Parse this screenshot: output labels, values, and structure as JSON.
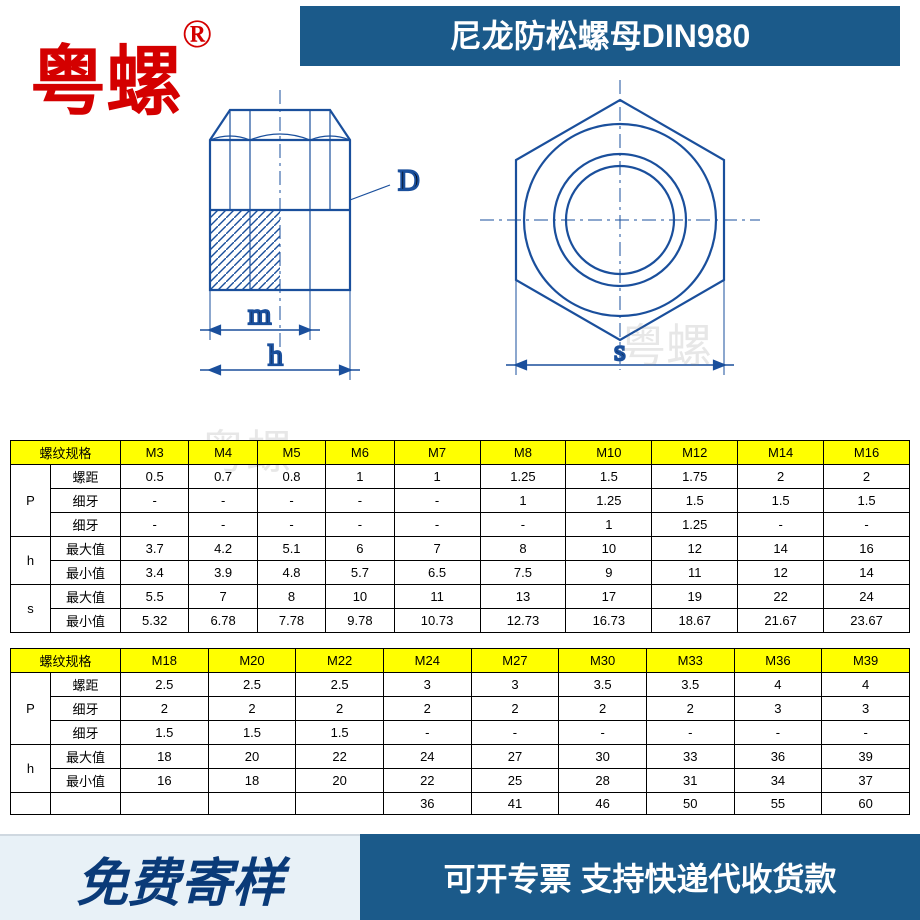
{
  "brand": {
    "text": "粤螺",
    "symbol": "®"
  },
  "title": "尼龙防松螺母DIN980",
  "watermark": "粤螺",
  "diagram": {
    "labels": {
      "D": "D",
      "m": "m",
      "h": "h",
      "s": "s"
    },
    "stroke": "#1a4f9c",
    "hatch": "#1a4f9c"
  },
  "colors": {
    "header_bg": "#1b5a8a",
    "header_fg": "#ffffff",
    "brand": "#d40000",
    "table_header_bg": "#ffff00",
    "border": "#000000",
    "footer_left_bg": "#e8f1f7",
    "footer_left_fg": "#0a3a78",
    "footer_right_bg": "#1b5a8a",
    "footer_right_fg": "#ffffff"
  },
  "table1": {
    "spec_label": "螺纹规格",
    "sizes": [
      "M3",
      "M4",
      "M5",
      "M6",
      "M7",
      "M8",
      "M10",
      "M12",
      "M14",
      "M16"
    ],
    "groups": [
      {
        "g": "P",
        "rows": [
          {
            "label": "螺距",
            "v": [
              "0.5",
              "0.7",
              "0.8",
              "1",
              "1",
              "1.25",
              "1.5",
              "1.75",
              "2",
              "2"
            ]
          },
          {
            "label": "细牙",
            "v": [
              "-",
              "-",
              "-",
              "-",
              "-",
              "1",
              "1.25",
              "1.5",
              "1.5",
              "1.5"
            ]
          },
          {
            "label": "细牙",
            "v": [
              "-",
              "-",
              "-",
              "-",
              "-",
              "-",
              "1",
              "1.25",
              "-",
              "-"
            ]
          }
        ]
      },
      {
        "g": "h",
        "rows": [
          {
            "label": "最大值",
            "v": [
              "3.7",
              "4.2",
              "5.1",
              "6",
              "7",
              "8",
              "10",
              "12",
              "14",
              "16"
            ]
          },
          {
            "label": "最小值",
            "v": [
              "3.4",
              "3.9",
              "4.8",
              "5.7",
              "6.5",
              "7.5",
              "9",
              "11",
              "12",
              "14"
            ]
          }
        ]
      },
      {
        "g": "s",
        "rows": [
          {
            "label": "最大值",
            "v": [
              "5.5",
              "7",
              "8",
              "10",
              "11",
              "13",
              "17",
              "19",
              "22",
              "24"
            ]
          },
          {
            "label": "最小值",
            "v": [
              "5.32",
              "6.78",
              "7.78",
              "9.78",
              "10.73",
              "12.73",
              "16.73",
              "18.67",
              "21.67",
              "23.67"
            ]
          }
        ]
      }
    ]
  },
  "table2": {
    "spec_label": "螺纹规格",
    "sizes": [
      "M18",
      "M20",
      "M22",
      "M24",
      "M27",
      "M30",
      "M33",
      "M36",
      "M39"
    ],
    "groups": [
      {
        "g": "P",
        "rows": [
          {
            "label": "螺距",
            "v": [
              "2.5",
              "2.5",
              "2.5",
              "3",
              "3",
              "3.5",
              "3.5",
              "4",
              "4"
            ]
          },
          {
            "label": "细牙",
            "v": [
              "2",
              "2",
              "2",
              "2",
              "2",
              "2",
              "2",
              "3",
              "3"
            ]
          },
          {
            "label": "细牙",
            "v": [
              "1.5",
              "1.5",
              "1.5",
              "-",
              "-",
              "-",
              "-",
              "-",
              "-"
            ]
          }
        ]
      },
      {
        "g": "h",
        "rows": [
          {
            "label": "最大值",
            "v": [
              "18",
              "20",
              "22",
              "24",
              "27",
              "30",
              "33",
              "36",
              "39"
            ]
          },
          {
            "label": "最小值",
            "v": [
              "16",
              "18",
              "20",
              "22",
              "25",
              "28",
              "31",
              "34",
              "37"
            ]
          }
        ]
      },
      {
        "g": "",
        "rows": [
          {
            "label": "",
            "v": [
              "",
              "",
              "",
              "36",
              "41",
              "46",
              "50",
              "55",
              "60"
            ]
          }
        ]
      }
    ]
  },
  "footer": {
    "left": "免费寄样",
    "right": "可开专票 支持快递代收货款"
  }
}
